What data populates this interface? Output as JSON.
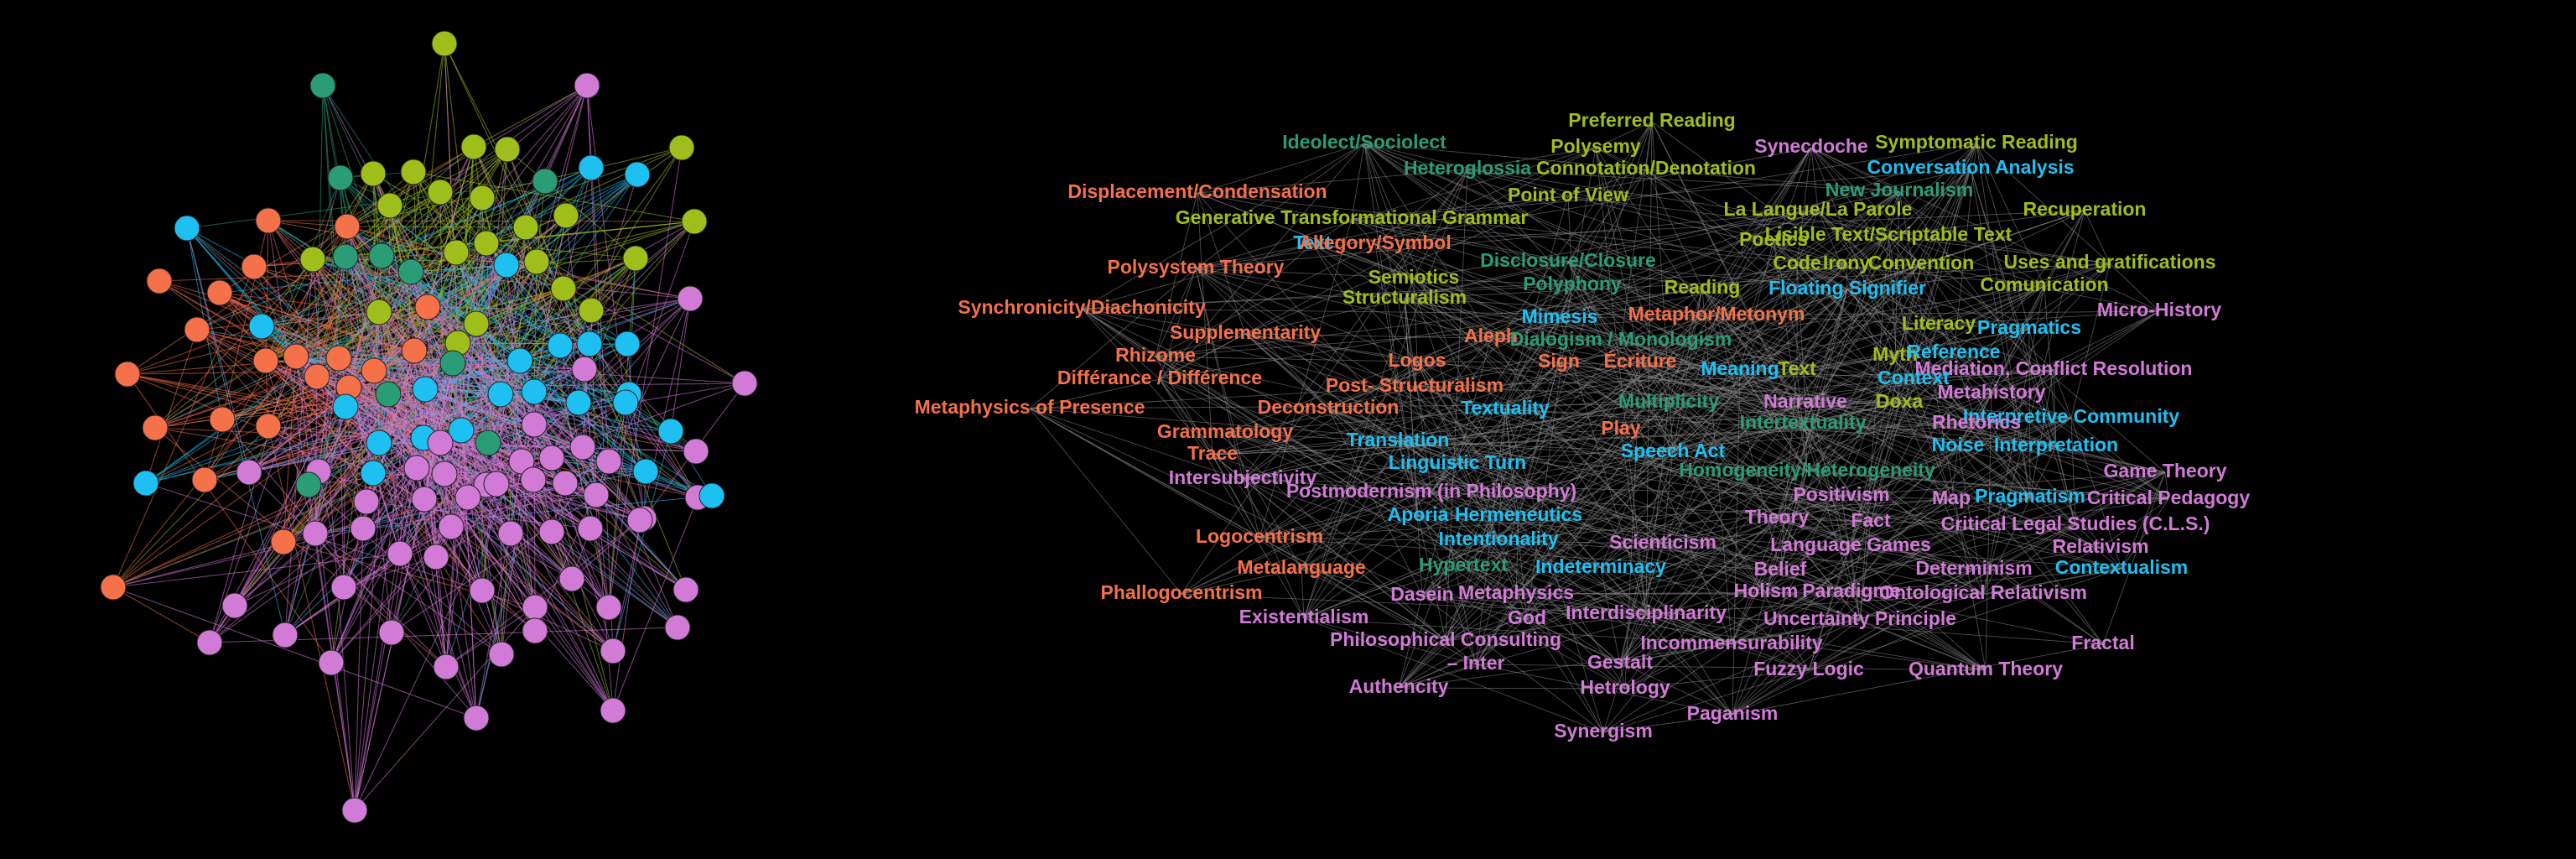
{
  "colors": {
    "background": "#000000",
    "teal": "#2a9d76",
    "olive": "#9fbe1c",
    "blue": "#1ec0f2",
    "orange": "#f4714a",
    "violet": "#d17ad6",
    "edge_gray": "#8c8c8c"
  },
  "terms": [
    {
      "text": "Preferred Reading",
      "c": "olive"
    },
    {
      "text": "Ideolect/Sociolect",
      "c": "teal"
    },
    {
      "text": "Polysemy",
      "c": "olive"
    },
    {
      "text": "Synecdoche",
      "c": "violet"
    },
    {
      "text": "Symptomatic Reading",
      "c": "olive"
    },
    {
      "text": "Heteroglossia",
      "c": "teal"
    },
    {
      "text": "Connotation/Denotation",
      "c": "olive"
    },
    {
      "text": "Conversation Analysis",
      "c": "blue"
    },
    {
      "text": "Displacement/Condensation",
      "c": "orange"
    },
    {
      "text": "Point  of  View",
      "c": "olive"
    },
    {
      "text": "New Journalism",
      "c": "teal"
    },
    {
      "text": "Generative Transformational Grammar",
      "c": "olive"
    },
    {
      "text": "La Langue/La Parole",
      "c": "olive"
    },
    {
      "text": "Recuperation",
      "c": "olive"
    },
    {
      "text": "Text",
      "c": "blue"
    },
    {
      "text": "Allegory/Symbol",
      "c": "orange"
    },
    {
      "text": "Poetics",
      "c": "olive"
    },
    {
      "text": "Lisible Text/Scriptable Text",
      "c": "olive"
    },
    {
      "text": "Polysystem Theory",
      "c": "orange"
    },
    {
      "text": "Disclosure/Closure",
      "c": "teal"
    },
    {
      "text": "Code",
      "c": "olive"
    },
    {
      "text": "Irony",
      "c": "olive"
    },
    {
      "text": "Convention",
      "c": "olive"
    },
    {
      "text": "Uses and gratifications",
      "c": "olive"
    },
    {
      "text": "Semiotics",
      "c": "olive"
    },
    {
      "text": "Polyphony",
      "c": "teal"
    },
    {
      "text": "Reading",
      "c": "olive"
    },
    {
      "text": "Floating Signifier",
      "c": "blue"
    },
    {
      "text": "Comunication",
      "c": "olive"
    },
    {
      "text": "Structuralism",
      "c": "olive"
    },
    {
      "text": "Synchronicity/Diachonicity",
      "c": "orange"
    },
    {
      "text": "Mimesis",
      "c": "blue"
    },
    {
      "text": "Metaphor/Metonym",
      "c": "orange"
    },
    {
      "text": "Micro-History",
      "c": "violet"
    },
    {
      "text": "Literacy",
      "c": "olive"
    },
    {
      "text": "Supplementarity",
      "c": "orange"
    },
    {
      "text": "Aleph",
      "c": "orange"
    },
    {
      "text": "Dialogism / Monologism",
      "c": "teal"
    },
    {
      "text": "Pragmatics",
      "c": "blue"
    },
    {
      "text": "Rhizome",
      "c": "orange"
    },
    {
      "text": "Myth",
      "c": "olive"
    },
    {
      "text": "Reference",
      "c": "blue"
    },
    {
      "text": "Logos",
      "c": "orange"
    },
    {
      "text": "Sign",
      "c": "orange"
    },
    {
      "text": "Écriture",
      "c": "orange"
    },
    {
      "text": "Meaning",
      "c": "blue"
    },
    {
      "text": "Text",
      "c": "olive"
    },
    {
      "text": "Mediation, Conflict Resolution",
      "c": "violet"
    },
    {
      "text": "Différance / Différence",
      "c": "orange"
    },
    {
      "text": "Post- Structuralism",
      "c": "orange"
    },
    {
      "text": "Context",
      "c": "blue"
    },
    {
      "text": "Metahistory",
      "c": "violet"
    },
    {
      "text": "Metaphysics of Presence",
      "c": "orange"
    },
    {
      "text": "Deconstruction",
      "c": "orange"
    },
    {
      "text": "Textuality",
      "c": "blue"
    },
    {
      "text": "Multiplicity",
      "c": "teal"
    },
    {
      "text": "Narrative",
      "c": "violet"
    },
    {
      "text": "Doxa",
      "c": "olive"
    },
    {
      "text": "Interpretive Community",
      "c": "blue"
    },
    {
      "text": "Grammatology",
      "c": "orange"
    },
    {
      "text": "Play",
      "c": "orange"
    },
    {
      "text": "Intertextuality",
      "c": "teal"
    },
    {
      "text": "Rhetorics",
      "c": "violet"
    },
    {
      "text": "Translation",
      "c": "blue"
    },
    {
      "text": "Speech Act",
      "c": "blue"
    },
    {
      "text": "Noise",
      "c": "blue"
    },
    {
      "text": "Interpretation",
      "c": "blue"
    },
    {
      "text": "Trace",
      "c": "orange"
    },
    {
      "text": "Linguistic Turn",
      "c": "blue"
    },
    {
      "text": "Homogeneity/Heterogeneity",
      "c": "teal"
    },
    {
      "text": "Game Theory",
      "c": "violet"
    },
    {
      "text": "Intersubjectivity",
      "c": "violet"
    },
    {
      "text": "Postmodernism (in Philosophy)",
      "c": "violet"
    },
    {
      "text": "Positivism",
      "c": "violet"
    },
    {
      "text": "Map",
      "c": "violet"
    },
    {
      "text": "Pragmatism",
      "c": "blue"
    },
    {
      "text": "Critical Pedagogy",
      "c": "violet"
    },
    {
      "text": "Aporia",
      "c": "blue"
    },
    {
      "text": "Hermeneutics",
      "c": "blue"
    },
    {
      "text": "Theory",
      "c": "violet"
    },
    {
      "text": "Fact",
      "c": "violet"
    },
    {
      "text": "Critical Legal Studies (C.L.S.)",
      "c": "violet"
    },
    {
      "text": "Logocentrism",
      "c": "orange"
    },
    {
      "text": "Intentionality",
      "c": "blue"
    },
    {
      "text": "Scienticism",
      "c": "violet"
    },
    {
      "text": "Language Games",
      "c": "violet"
    },
    {
      "text": "Relativism",
      "c": "violet"
    },
    {
      "text": "Metalanguage",
      "c": "orange"
    },
    {
      "text": "Hypertext",
      "c": "teal"
    },
    {
      "text": "Indeterminacy",
      "c": "blue"
    },
    {
      "text": "Belief",
      "c": "violet"
    },
    {
      "text": "Determinism",
      "c": "violet"
    },
    {
      "text": "Contextualism",
      "c": "blue"
    },
    {
      "text": "Phallogocentrism",
      "c": "orange"
    },
    {
      "text": "Dasein",
      "c": "violet"
    },
    {
      "text": "Metaphysics",
      "c": "violet"
    },
    {
      "text": "Holism",
      "c": "violet"
    },
    {
      "text": "Paradigme",
      "c": "violet"
    },
    {
      "text": "Ontological Relativism",
      "c": "violet"
    },
    {
      "text": "Existentialism",
      "c": "violet"
    },
    {
      "text": "God",
      "c": "violet"
    },
    {
      "text": "Interdisciplinarity",
      "c": "violet"
    },
    {
      "text": "Uncertainty Principle",
      "c": "violet"
    },
    {
      "text": "Philosophical Consulting",
      "c": "violet"
    },
    {
      "text": "Incommensurability",
      "c": "violet"
    },
    {
      "text": "Fractal",
      "c": "violet"
    },
    {
      "text": "– Inter",
      "c": "violet"
    },
    {
      "text": "Gestalt",
      "c": "violet"
    },
    {
      "text": "Fuzzy Logic",
      "c": "violet"
    },
    {
      "text": "Quantum Theory",
      "c": "violet"
    },
    {
      "text": "Authencity",
      "c": "violet"
    },
    {
      "text": "Hetrology",
      "c": "violet"
    },
    {
      "text": "Paganism",
      "c": "violet"
    },
    {
      "text": "Synergism",
      "c": "violet"
    }
  ]
}
